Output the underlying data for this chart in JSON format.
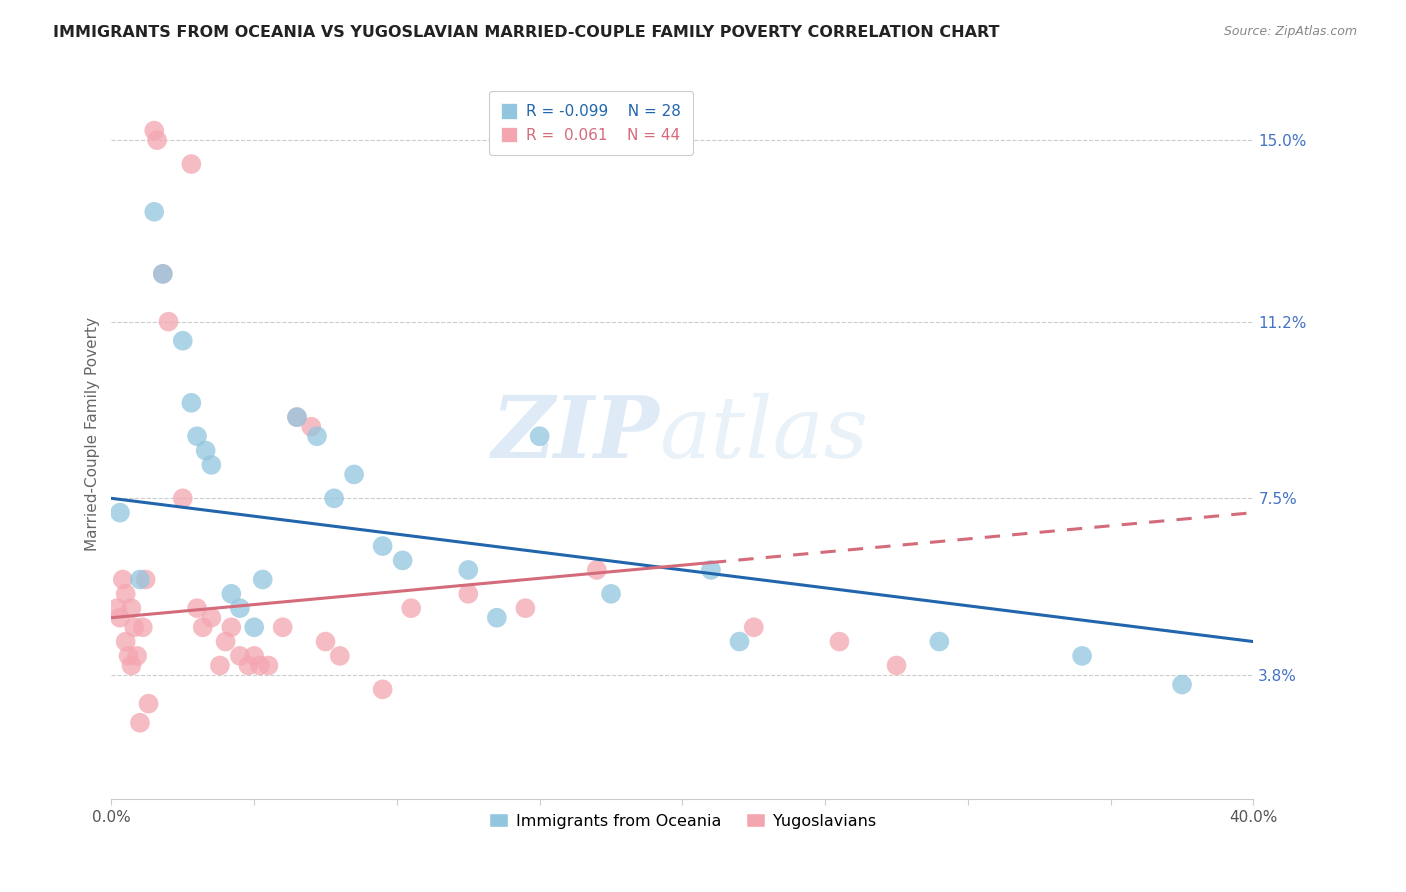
{
  "title": "IMMIGRANTS FROM OCEANIA VS YUGOSLAVIAN MARRIED-COUPLE FAMILY POVERTY CORRELATION CHART",
  "source": "Source: ZipAtlas.com",
  "ylabel": "Married-Couple Family Poverty",
  "yticks": [
    3.8,
    7.5,
    11.2,
    15.0
  ],
  "ytick_labels": [
    "3.8%",
    "7.5%",
    "11.2%",
    "15.0%"
  ],
  "xlim": [
    0.0,
    40.0
  ],
  "ylim": [
    1.2,
    16.5
  ],
  "watermark_zip": "ZIP",
  "watermark_atlas": "atlas",
  "legend_blue_r": "-0.099",
  "legend_blue_n": "28",
  "legend_pink_r": " 0.061",
  "legend_pink_n": "44",
  "legend_label_blue": "Immigrants from Oceania",
  "legend_label_pink": "Yugoslavians",
  "blue_color": "#92c5de",
  "pink_color": "#f4a6b0",
  "blue_line_color": "#2166ac",
  "pink_line_color": "#d46b7a",
  "blue_scatter": [
    [
      0.3,
      7.2
    ],
    [
      1.0,
      5.8
    ],
    [
      1.5,
      13.5
    ],
    [
      1.8,
      12.2
    ],
    [
      2.5,
      10.8
    ],
    [
      2.8,
      9.5
    ],
    [
      3.0,
      8.8
    ],
    [
      3.3,
      8.5
    ],
    [
      3.5,
      8.2
    ],
    [
      4.2,
      5.5
    ],
    [
      4.5,
      5.2
    ],
    [
      5.0,
      4.8
    ],
    [
      5.3,
      5.8
    ],
    [
      6.5,
      9.2
    ],
    [
      7.2,
      8.8
    ],
    [
      7.8,
      7.5
    ],
    [
      8.5,
      8.0
    ],
    [
      9.5,
      6.5
    ],
    [
      10.2,
      6.2
    ],
    [
      12.5,
      6.0
    ],
    [
      13.5,
      5.0
    ],
    [
      15.0,
      8.8
    ],
    [
      17.5,
      5.5
    ],
    [
      21.0,
      6.0
    ],
    [
      22.0,
      4.5
    ],
    [
      29.0,
      4.5
    ],
    [
      34.0,
      4.2
    ],
    [
      37.5,
      3.6
    ]
  ],
  "pink_scatter": [
    [
      0.2,
      5.2
    ],
    [
      0.3,
      5.0
    ],
    [
      0.4,
      5.8
    ],
    [
      0.5,
      5.5
    ],
    [
      0.5,
      4.5
    ],
    [
      0.6,
      4.2
    ],
    [
      0.7,
      5.2
    ],
    [
      0.7,
      4.0
    ],
    [
      0.8,
      4.8
    ],
    [
      0.9,
      4.2
    ],
    [
      1.0,
      2.8
    ],
    [
      1.1,
      4.8
    ],
    [
      1.2,
      5.8
    ],
    [
      1.3,
      3.2
    ],
    [
      1.5,
      15.2
    ],
    [
      1.6,
      15.0
    ],
    [
      1.8,
      12.2
    ],
    [
      2.0,
      11.2
    ],
    [
      2.5,
      7.5
    ],
    [
      2.8,
      14.5
    ],
    [
      3.0,
      5.2
    ],
    [
      3.2,
      4.8
    ],
    [
      3.5,
      5.0
    ],
    [
      3.8,
      4.0
    ],
    [
      4.0,
      4.5
    ],
    [
      4.2,
      4.8
    ],
    [
      4.5,
      4.2
    ],
    [
      4.8,
      4.0
    ],
    [
      5.0,
      4.2
    ],
    [
      5.2,
      4.0
    ],
    [
      5.5,
      4.0
    ],
    [
      6.0,
      4.8
    ],
    [
      6.5,
      9.2
    ],
    [
      7.0,
      9.0
    ],
    [
      7.5,
      4.5
    ],
    [
      8.0,
      4.2
    ],
    [
      9.5,
      3.5
    ],
    [
      10.5,
      5.2
    ],
    [
      12.5,
      5.5
    ],
    [
      14.5,
      5.2
    ],
    [
      17.0,
      6.0
    ],
    [
      22.5,
      4.8
    ],
    [
      25.5,
      4.5
    ],
    [
      27.5,
      4.0
    ]
  ],
  "blue_line_x0": 0.0,
  "blue_line_x1": 40.0,
  "blue_line_y0": 7.5,
  "blue_line_y1": 4.5,
  "pink_line_x0": 0.0,
  "pink_line_x1": 40.0,
  "pink_line_y0": 5.0,
  "pink_line_y1": 7.2,
  "pink_dashed_start_x": 21.0
}
